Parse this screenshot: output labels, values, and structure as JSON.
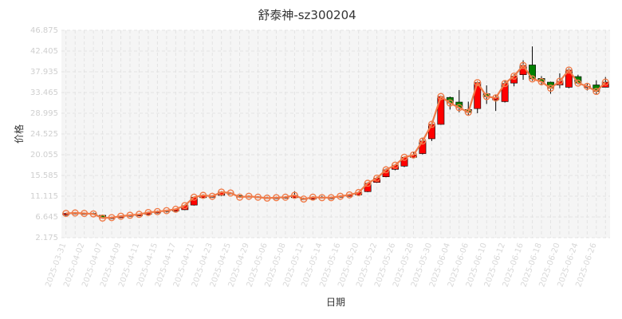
{
  "chart_data": {
    "type": "candlestick",
    "title": "舒泰神-sz300204",
    "xlabel": "日期",
    "ylabel": "价格",
    "ylim": [
      2.175,
      46.875
    ],
    "yticks": [
      "2.175",
      "6.645",
      "11.115",
      "15.585",
      "20.055",
      "24.525",
      "28.995",
      "33.465",
      "37.935",
      "42.405",
      "46.875"
    ],
    "grid": true,
    "colors": {
      "up": "#ff0000",
      "down": "#008000",
      "close_line": "#f07c4a",
      "marker": "#f07c4a",
      "grid": "#e3e3e3",
      "plot_bg": "#f5f5f5"
    },
    "x_tick_labels": [
      "2025-03-31",
      "2025-04-02",
      "2025-04-07",
      "2025-04-09",
      "2025-04-11",
      "2025-04-15",
      "2025-04-17",
      "2025-04-21",
      "2025-04-23",
      "2025-04-25",
      "2025-04-29",
      "2025-05-06",
      "2025-05-08",
      "2025-05-12",
      "2025-05-14",
      "2025-05-16",
      "2025-05-20",
      "2025-05-22",
      "2025-05-26",
      "2025-05-28",
      "2025-05-30",
      "2025-06-04",
      "2025-06-06",
      "2025-06-10",
      "2025-06-12",
      "2025-06-16",
      "2025-06-18",
      "2025-06-20",
      "2025-06-24",
      "2025-06-26"
    ],
    "ohlc": [
      [
        7.1,
        7.4,
        6.9,
        7.5
      ],
      [
        7.3,
        7.5,
        7.2,
        7.7
      ],
      [
        7.4,
        7.4,
        7.2,
        7.6
      ],
      [
        7.4,
        7.3,
        7.2,
        7.6
      ],
      [
        7.0,
        6.4,
        6.3,
        7.1
      ],
      [
        6.4,
        6.5,
        6.2,
        6.7
      ],
      [
        6.5,
        6.8,
        6.4,
        6.9
      ],
      [
        6.8,
        7.0,
        6.7,
        7.1
      ],
      [
        6.9,
        7.2,
        6.8,
        7.3
      ],
      [
        7.2,
        7.6,
        7.1,
        7.7
      ],
      [
        7.5,
        7.8,
        7.4,
        8.0
      ],
      [
        7.8,
        8.0,
        7.6,
        8.1
      ],
      [
        7.9,
        8.3,
        7.8,
        8.4
      ],
      [
        8.2,
        9.1,
        8.1,
        9.3
      ],
      [
        9.2,
        10.9,
        9.1,
        11.0
      ],
      [
        10.8,
        11.3,
        10.6,
        11.5
      ],
      [
        10.9,
        11.1,
        10.8,
        11.3
      ],
      [
        11.3,
        12.0,
        11.1,
        12.2
      ],
      [
        11.8,
        11.8,
        11.6,
        12.0
      ],
      [
        11.2,
        10.9,
        10.8,
        11.3
      ],
      [
        11.0,
        11.1,
        10.9,
        11.3
      ],
      [
        11.0,
        10.9,
        10.8,
        11.1
      ],
      [
        10.8,
        10.7,
        10.6,
        11.0
      ],
      [
        10.6,
        10.8,
        10.6,
        11.0
      ],
      [
        10.8,
        10.9,
        10.6,
        11.1
      ],
      [
        10.8,
        11.3,
        10.7,
        12.2
      ],
      [
        10.6,
        10.5,
        10.3,
        10.8
      ],
      [
        10.5,
        10.9,
        10.4,
        11.1
      ],
      [
        10.9,
        10.8,
        10.7,
        11.2
      ],
      [
        10.6,
        10.8,
        10.5,
        11.0
      ],
      [
        10.9,
        11.1,
        10.8,
        11.3
      ],
      [
        11.1,
        11.4,
        11.0,
        11.6
      ],
      [
        11.4,
        11.9,
        11.3,
        12.1
      ],
      [
        12.1,
        13.9,
        12.0,
        14.0
      ],
      [
        14.1,
        15.0,
        14.0,
        15.3
      ],
      [
        15.3,
        16.8,
        15.2,
        17.1
      ],
      [
        16.9,
        17.8,
        16.7,
        18.0
      ],
      [
        17.6,
        19.5,
        17.4,
        19.7
      ],
      [
        19.5,
        20.0,
        19.3,
        20.6
      ],
      [
        20.3,
        23.0,
        20.1,
        23.6
      ],
      [
        23.5,
        26.6,
        23.0,
        27.3
      ],
      [
        26.6,
        32.6,
        26.5,
        32.8
      ],
      [
        32.4,
        31.2,
        29.8,
        32.6
      ],
      [
        31.4,
        30.2,
        29.2,
        34.0
      ],
      [
        29.8,
        29.2,
        28.6,
        31.5
      ],
      [
        30.0,
        35.6,
        29.0,
        35.9
      ],
      [
        33.2,
        32.6,
        31.0,
        35.0
      ],
      [
        31.9,
        32.3,
        29.5,
        33.0
      ],
      [
        31.5,
        35.4,
        31.3,
        36.0
      ],
      [
        35.5,
        37.0,
        34.8,
        37.4
      ],
      [
        37.3,
        39.3,
        36.2,
        40.4
      ],
      [
        39.4,
        36.4,
        36.0,
        43.4
      ],
      [
        36.5,
        35.8,
        35.0,
        37.0
      ],
      [
        35.7,
        34.4,
        33.2,
        35.8
      ],
      [
        35.1,
        35.9,
        34.4,
        37.6
      ],
      [
        34.6,
        38.3,
        34.4,
        38.7
      ],
      [
        36.9,
        35.5,
        35.2,
        37.3
      ],
      [
        34.8,
        34.8,
        33.9,
        35.4
      ],
      [
        35.1,
        33.7,
        33.0,
        36.1
      ],
      [
        34.6,
        35.7,
        34.6,
        36.8
      ]
    ]
  }
}
